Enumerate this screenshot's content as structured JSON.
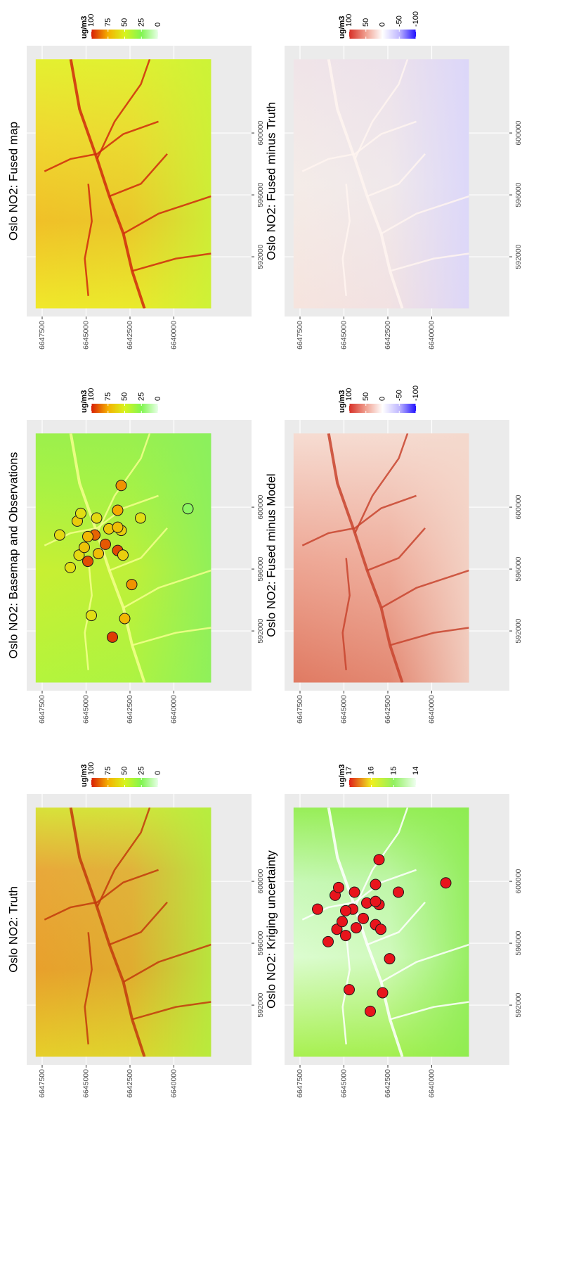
{
  "chart_data": [
    {
      "type": "map",
      "title": "Oslo NO2: Truth",
      "xlim": [
        588140,
        605640
      ],
      "ylim": [
        6635580,
        6648380
      ],
      "xticks": [
        592000,
        596000,
        600000
      ],
      "yticks": [
        6640000,
        6642500,
        6645000,
        6647500
      ],
      "grid": true,
      "legend": {
        "title": "ug/m3",
        "limits": [
          0,
          100
        ],
        "ticks": [
          100,
          75,
          50,
          25,
          0
        ],
        "colors": [
          "#d81e05",
          "#f5b000",
          "#d8f41e",
          "#80f550",
          "#e8ffe8"
        ]
      }
    },
    {
      "type": "map",
      "title": "Oslo NO2: Basemap and Observations",
      "xlim": [
        588140,
        605640
      ],
      "ylim": [
        6635580,
        6648380
      ],
      "xticks": [
        592000,
        596000,
        600000
      ],
      "yticks": [
        6640000,
        6642500,
        6645000,
        6647500
      ],
      "grid": true,
      "legend": {
        "title": "ug/m3",
        "limits": [
          0,
          100
        ],
        "ticks": [
          100,
          75,
          50,
          25,
          0
        ],
        "colors": [
          "#d81e05",
          "#f5b000",
          "#d8f41e",
          "#80f550",
          "#e8ffe8"
        ]
      },
      "x": [
        591600,
        593000,
        592800,
        595000,
        596100,
        596500,
        596900,
        597000,
        597400,
        597200,
        597600,
        596900,
        598200,
        598100,
        598600,
        598500,
        598700,
        598200,
        599100,
        599300,
        599600,
        599800,
        599300,
        599900,
        601400
      ],
      "y": [
        6643500,
        6644700,
        6642800,
        6642400,
        6645900,
        6644900,
        6645400,
        6644300,
        6645100,
        6643200,
        6643900,
        6642900,
        6644500,
        6644900,
        6643700,
        6643000,
        6643200,
        6646500,
        6645500,
        6644400,
        6645300,
        6643200,
        6641900,
        6639200,
        6643000
      ],
      "values": [
        95,
        58,
        72,
        80,
        58,
        92,
        60,
        70,
        68,
        93,
        90,
        64,
        88,
        72,
        66,
        64,
        70,
        60,
        65,
        60,
        58,
        76,
        58,
        22,
        80
      ]
    },
    {
      "type": "map",
      "title": "Oslo NO2: Fused map",
      "xlim": [
        588140,
        605640
      ],
      "ylim": [
        6635580,
        6648380
      ],
      "xticks": [
        592000,
        596000,
        600000
      ],
      "yticks": [
        6640000,
        6642500,
        6645000,
        6647500
      ],
      "grid": true,
      "legend": {
        "title": "ug/m3",
        "limits": [
          0,
          100
        ],
        "ticks": [
          100,
          75,
          50,
          25,
          0
        ],
        "colors": [
          "#d81e05",
          "#f5b000",
          "#d8f41e",
          "#80f550",
          "#e8ffe8"
        ]
      }
    },
    {
      "type": "map",
      "title": "Oslo NO2: Kriging uncertainty",
      "xlim": [
        588140,
        605640
      ],
      "ylim": [
        6635580,
        6648380
      ],
      "xticks": [
        592000,
        596000,
        600000
      ],
      "yticks": [
        6640000,
        6642500,
        6645000,
        6647500
      ],
      "grid": true,
      "legend": {
        "title": "ug/m3",
        "limits": [
          14,
          17
        ],
        "ticks": [
          17,
          16,
          15,
          14
        ],
        "colors": [
          "#e0201a",
          "#f0f020",
          "#90f060",
          "#f0fff0"
        ]
      },
      "x": [
        591600,
        593000,
        592800,
        595000,
        596100,
        596500,
        596900,
        597000,
        597400,
        597200,
        597600,
        596900,
        598200,
        598100,
        598600,
        598500,
        598700,
        598200,
        599100,
        599300,
        599600,
        599800,
        599300,
        599900,
        601400
      ],
      "y": [
        6643500,
        6644700,
        6642800,
        6642400,
        6645900,
        6644900,
        6645400,
        6644300,
        6645100,
        6643200,
        6643900,
        6642900,
        6644500,
        6644900,
        6643700,
        6643000,
        6643200,
        6646500,
        6645500,
        6644400,
        6645300,
        6643200,
        6641900,
        6639200,
        6643000
      ],
      "color": "#e8141c"
    },
    {
      "type": "map",
      "title": "Oslo NO2: Fused minus Model",
      "xlim": [
        588140,
        605640
      ],
      "ylim": [
        6635580,
        6648380
      ],
      "xticks": [
        592000,
        596000,
        600000
      ],
      "yticks": [
        6640000,
        6642500,
        6645000,
        6647500
      ],
      "grid": true,
      "legend": {
        "title": "ug/m3",
        "limits": [
          -100,
          100
        ],
        "ticks": [
          100,
          50,
          0,
          -50,
          -100
        ],
        "colors": [
          "#d73027",
          "#f0a090",
          "#ffffff",
          "#c0b8ff",
          "#2010ff"
        ]
      }
    },
    {
      "type": "map",
      "title": "Oslo NO2: Fused minus Truth",
      "xlim": [
        588140,
        605640
      ],
      "ylim": [
        6635580,
        6648380
      ],
      "xticks": [
        592000,
        596000,
        600000
      ],
      "yticks": [
        6640000,
        6642500,
        6645000,
        6647500
      ],
      "grid": true,
      "legend": {
        "title": "ug/m3",
        "limits": [
          -100,
          100
        ],
        "ticks": [
          100,
          50,
          0,
          -50,
          -100
        ],
        "colors": [
          "#d73027",
          "#f0a090",
          "#ffffff",
          "#c0b8ff",
          "#2010ff"
        ]
      }
    }
  ]
}
